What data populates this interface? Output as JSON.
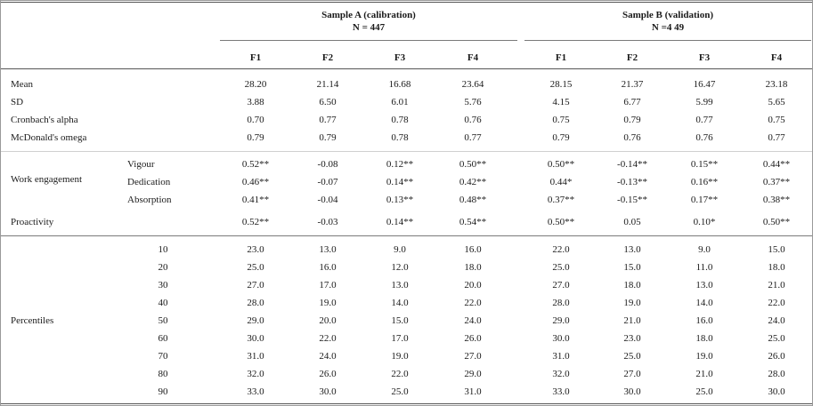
{
  "header": {
    "sample_a": "Sample A (calibration)",
    "n_a": "N = 447",
    "sample_b": "Sample B (validation)",
    "n_b": "N =4 49"
  },
  "columns": [
    "F1",
    "F2",
    "F3",
    "F4",
    "F1",
    "F2",
    "F3",
    "F4"
  ],
  "stats_rows": [
    {
      "label": "Mean",
      "values": [
        "28.20",
        "21.14",
        "16.68",
        "23.64",
        "28.15",
        "21.37",
        "16.47",
        "23.18"
      ]
    },
    {
      "label": "SD",
      "values": [
        "3.88",
        "6.50",
        "6.01",
        "5.76",
        "4.15",
        "6.77",
        "5.99",
        "5.65"
      ]
    },
    {
      "label": "Cronbach's alpha",
      "values": [
        "0.70",
        "0.77",
        "0.78",
        "0.76",
        "0.75",
        "0.79",
        "0.77",
        "0.75"
      ]
    },
    {
      "label": "McDonald's omega",
      "values": [
        "0.79",
        "0.79",
        "0.78",
        "0.77",
        "0.79",
        "0.76",
        "0.76",
        "0.77"
      ]
    }
  ],
  "work_engagement": {
    "label": "Work engagement",
    "rows": [
      {
        "sublabel": "Vigour",
        "values": [
          "0.52**",
          "-0.08",
          "0.12**",
          "0.50**",
          "0.50**",
          "-0.14**",
          "0.15**",
          "0.44**"
        ]
      },
      {
        "sublabel": "Dedication",
        "values": [
          "0.46**",
          "-0.07",
          "0.14**",
          "0.42**",
          "0.44*",
          "-0.13**",
          "0.16**",
          "0.37**"
        ]
      },
      {
        "sublabel": "Absorption",
        "values": [
          "0.41**",
          "-0.04",
          "0.13**",
          "0.48**",
          "0.37**",
          "-0.15**",
          "0.17**",
          "0.38**"
        ]
      }
    ]
  },
  "proactivity": {
    "label": "Proactivity",
    "values": [
      "0.52**",
      "-0.03",
      "0.14**",
      "0.54**",
      "0.50**",
      "0.05",
      "0.10*",
      "0.50**"
    ]
  },
  "percentiles": {
    "label": "Percentiles",
    "rows": [
      {
        "p": "10",
        "values": [
          "23.0",
          "13.0",
          "9.0",
          "16.0",
          "22.0",
          "13.0",
          "9.0",
          "15.0"
        ]
      },
      {
        "p": "20",
        "values": [
          "25.0",
          "16.0",
          "12.0",
          "18.0",
          "25.0",
          "15.0",
          "11.0",
          "18.0"
        ]
      },
      {
        "p": "30",
        "values": [
          "27.0",
          "17.0",
          "13.0",
          "20.0",
          "27.0",
          "18.0",
          "13.0",
          "21.0"
        ]
      },
      {
        "p": "40",
        "values": [
          "28.0",
          "19.0",
          "14.0",
          "22.0",
          "28.0",
          "19.0",
          "14.0",
          "22.0"
        ]
      },
      {
        "p": "50",
        "values": [
          "29.0",
          "20.0",
          "15.0",
          "24.0",
          "29.0",
          "21.0",
          "16.0",
          "24.0"
        ]
      },
      {
        "p": "60",
        "values": [
          "30.0",
          "22.0",
          "17.0",
          "26.0",
          "30.0",
          "23.0",
          "18.0",
          "25.0"
        ]
      },
      {
        "p": "70",
        "values": [
          "31.0",
          "24.0",
          "19.0",
          "27.0",
          "31.0",
          "25.0",
          "19.0",
          "26.0"
        ]
      },
      {
        "p": "80",
        "values": [
          "32.0",
          "26.0",
          "22.0",
          "29.0",
          "32.0",
          "27.0",
          "21.0",
          "28.0"
        ]
      },
      {
        "p": "90",
        "values": [
          "33.0",
          "30.0",
          "25.0",
          "31.0",
          "33.0",
          "30.0",
          "25.0",
          "30.0"
        ]
      }
    ]
  }
}
